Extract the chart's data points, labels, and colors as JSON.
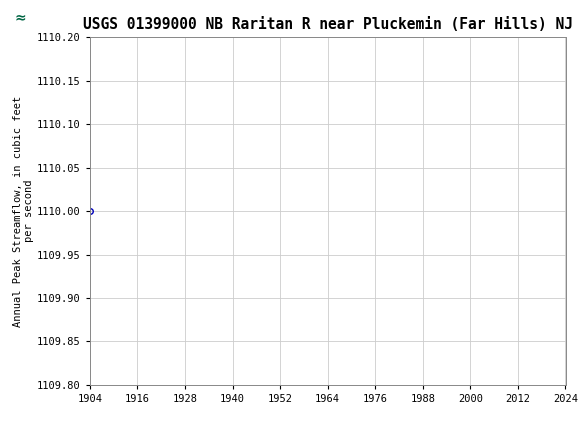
{
  "title": "USGS 01399000 NB Raritan R near Pluckemin (Far Hills) NJ",
  "xlabel": "",
  "ylabel": "Annual Peak Streamflow, in cubic feet\nper second",
  "xlim": [
    1904,
    2024
  ],
  "ylim": [
    1109.8,
    1110.2
  ],
  "xticks": [
    1904,
    1916,
    1928,
    1940,
    1952,
    1964,
    1976,
    1988,
    2000,
    2012,
    2024
  ],
  "yticks": [
    1109.8,
    1109.85,
    1109.9,
    1109.95,
    1110.0,
    1110.05,
    1110.1,
    1110.15,
    1110.2
  ],
  "data_x": [
    1904
  ],
  "data_y": [
    1110.0
  ],
  "marker_color": "#0000bb",
  "marker_size": 4,
  "grid_color": "#cccccc",
  "background_color": "#ffffff",
  "plot_bg_color": "#ffffff",
  "header_bg_color": "#006644",
  "title_fontsize": 10.5,
  "axis_fontsize": 7.5,
  "tick_fontsize": 7.5,
  "font_family": "monospace"
}
